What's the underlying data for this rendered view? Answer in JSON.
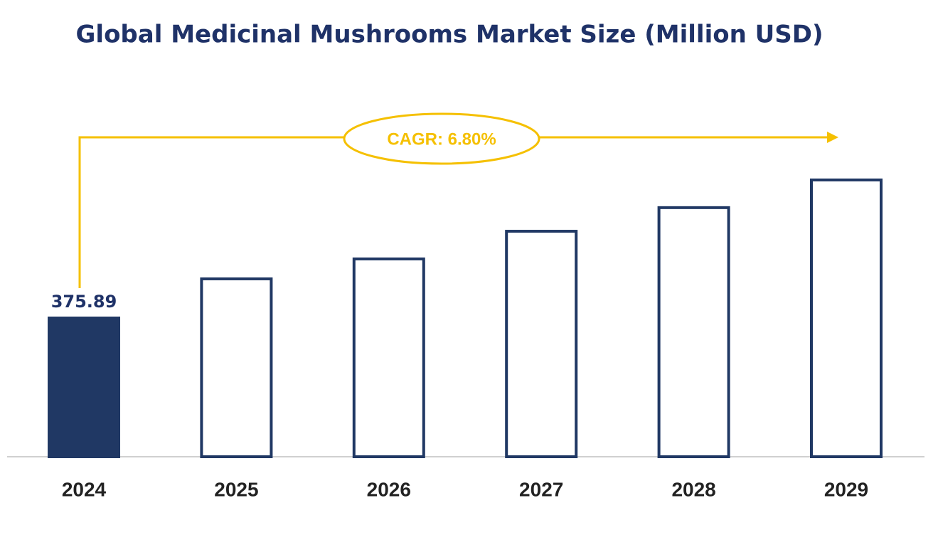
{
  "chart_data": {
    "type": "bar",
    "title": "Global Medicinal Mushrooms Market Size (Million USD)",
    "annotation": "CAGR: 6.80%",
    "categories": [
      "2024",
      "2025",
      "2026",
      "2027",
      "2028",
      "2029"
    ],
    "values": [
      375.89,
      482,
      536,
      611,
      675,
      750
    ],
    "colors": [
      "#203864",
      "#ffffff",
      "#ffffff",
      "#ffffff",
      "#ffffff",
      "#ffffff"
    ],
    "edgecolor": "#203864",
    "annotation_color": "#f5c000",
    "ylim": [
      0,
      800
    ]
  }
}
